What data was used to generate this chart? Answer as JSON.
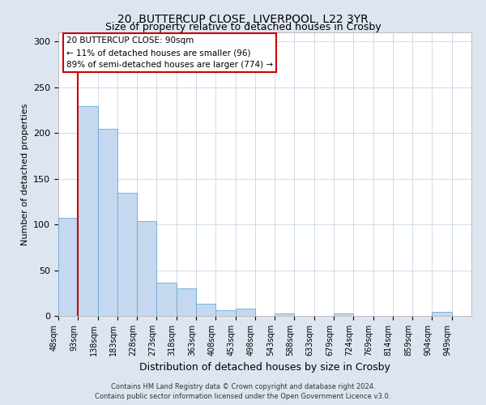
{
  "title": "20, BUTTERCUP CLOSE, LIVERPOOL, L22 3YR",
  "subtitle": "Size of property relative to detached houses in Crosby",
  "xlabel": "Distribution of detached houses by size in Crosby",
  "ylabel": "Number of detached properties",
  "bar_labels": [
    "48sqm",
    "93sqm",
    "138sqm",
    "183sqm",
    "228sqm",
    "273sqm",
    "318sqm",
    "363sqm",
    "408sqm",
    "453sqm",
    "498sqm",
    "543sqm",
    "588sqm",
    "633sqm",
    "679sqm",
    "724sqm",
    "769sqm",
    "814sqm",
    "859sqm",
    "904sqm",
    "949sqm"
  ],
  "bar_values": [
    107,
    229,
    205,
    135,
    104,
    36,
    30,
    13,
    6,
    8,
    0,
    3,
    0,
    0,
    3,
    0,
    0,
    0,
    0,
    4,
    0
  ],
  "bar_color": "#c5d8f0",
  "bar_edge_color": "#6aaad4",
  "ylim": [
    0,
    310
  ],
  "yticks": [
    0,
    50,
    100,
    150,
    200,
    250,
    300
  ],
  "annotation_title": "20 BUTTERCUP CLOSE: 90sqm",
  "annotation_line1": "← 11% of detached houses are smaller (96)",
  "annotation_line2": "89% of semi-detached houses are larger (774) →",
  "red_line_color": "#cc0000",
  "annotation_box_color": "#ffffff",
  "annotation_box_edge": "#cc0000",
  "footer_line1": "Contains HM Land Registry data © Crown copyright and database right 2024.",
  "footer_line2": "Contains public sector information licensed under the Open Government Licence v3.0.",
  "background_color": "#dde6f0",
  "plot_background_color": "#ffffff",
  "title_fontsize": 10,
  "subtitle_fontsize": 9,
  "axis_label_fontsize": 8,
  "tick_fontsize": 7,
  "annotation_fontsize": 7.5,
  "footer_fontsize": 6
}
